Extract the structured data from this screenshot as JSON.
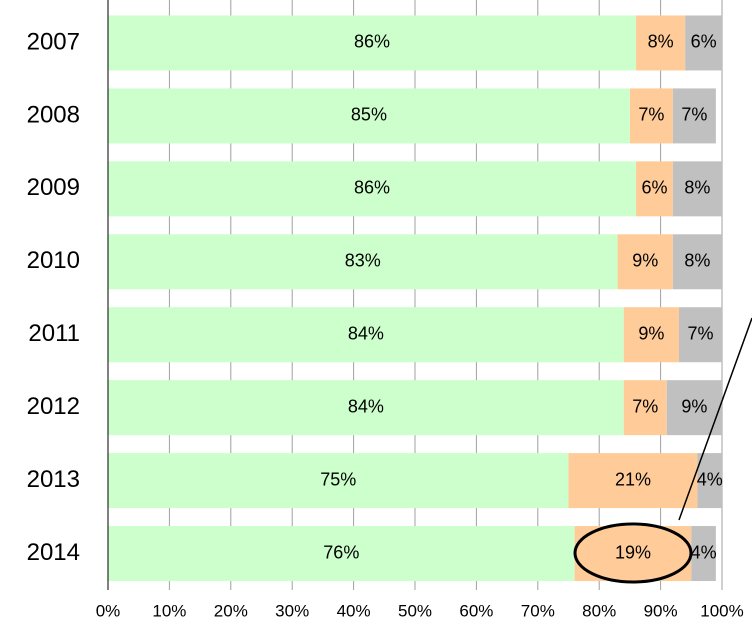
{
  "chart_data": {
    "type": "stacked-barh",
    "categories": [
      "2007",
      "2008",
      "2009",
      "2010",
      "2011",
      "2012",
      "2013",
      "2014"
    ],
    "series": [
      {
        "color": "#ccffcc",
        "values": [
          86,
          85,
          86,
          83,
          84,
          84,
          75,
          76
        ],
        "value_labels": [
          "86%",
          "85%",
          "86%",
          "83%",
          "84%",
          "84%",
          "75%",
          "76%"
        ]
      },
      {
        "color": "#ffcc99",
        "values": [
          8,
          7,
          6,
          9,
          9,
          7,
          21,
          19
        ],
        "value_labels": [
          "8%",
          "7%",
          "6%",
          "9%",
          "9%",
          "7%",
          "21%",
          "19%"
        ]
      },
      {
        "color": "#c0c0c0",
        "values": [
          6,
          7,
          8,
          8,
          7,
          9,
          4,
          4
        ],
        "value_labels": [
          "6%",
          "7%",
          "8%",
          "8%",
          "7%",
          "9%",
          "4%",
          "4%"
        ]
      }
    ],
    "xlim": [
      0,
      100
    ],
    "xticks": [
      {
        "value": 0,
        "label": "0%"
      },
      {
        "value": 10,
        "label": "10%"
      },
      {
        "value": 20,
        "label": "20%"
      },
      {
        "value": 30,
        "label": "30%"
      },
      {
        "value": 40,
        "label": "40%"
      },
      {
        "value": 50,
        "label": "50%"
      },
      {
        "value": 60,
        "label": "60%"
      },
      {
        "value": 70,
        "label": "70%"
      },
      {
        "value": 80,
        "label": "80%"
      },
      {
        "value": 90,
        "label": "90%"
      },
      {
        "value": 100,
        "label": "100%"
      }
    ],
    "grid": true
  }
}
